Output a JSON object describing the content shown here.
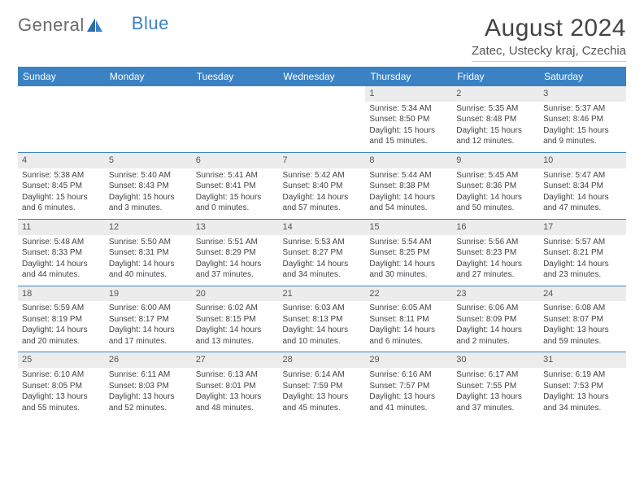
{
  "logo": {
    "part1": "General",
    "part2": "Blue"
  },
  "title": "August 2024",
  "location": "Zatec, Ustecky kraj, Czechia",
  "colors": {
    "header_bg": "#3b82c4",
    "header_fg": "#ffffff",
    "daynum_bg": "#ececec",
    "border": "#3b82c4",
    "text": "#444444"
  },
  "typography": {
    "title_fontsize": 30,
    "location_fontsize": 15,
    "dayheader_fontsize": 12,
    "cell_fontsize": 10
  },
  "day_headers": [
    "Sunday",
    "Monday",
    "Tuesday",
    "Wednesday",
    "Thursday",
    "Friday",
    "Saturday"
  ],
  "weeks": [
    [
      null,
      null,
      null,
      null,
      {
        "n": "1",
        "sunrise": "Sunrise: 5:34 AM",
        "sunset": "Sunset: 8:50 PM",
        "daylight": "Daylight: 15 hours and 15 minutes."
      },
      {
        "n": "2",
        "sunrise": "Sunrise: 5:35 AM",
        "sunset": "Sunset: 8:48 PM",
        "daylight": "Daylight: 15 hours and 12 minutes."
      },
      {
        "n": "3",
        "sunrise": "Sunrise: 5:37 AM",
        "sunset": "Sunset: 8:46 PM",
        "daylight": "Daylight: 15 hours and 9 minutes."
      }
    ],
    [
      {
        "n": "4",
        "sunrise": "Sunrise: 5:38 AM",
        "sunset": "Sunset: 8:45 PM",
        "daylight": "Daylight: 15 hours and 6 minutes."
      },
      {
        "n": "5",
        "sunrise": "Sunrise: 5:40 AM",
        "sunset": "Sunset: 8:43 PM",
        "daylight": "Daylight: 15 hours and 3 minutes."
      },
      {
        "n": "6",
        "sunrise": "Sunrise: 5:41 AM",
        "sunset": "Sunset: 8:41 PM",
        "daylight": "Daylight: 15 hours and 0 minutes."
      },
      {
        "n": "7",
        "sunrise": "Sunrise: 5:42 AM",
        "sunset": "Sunset: 8:40 PM",
        "daylight": "Daylight: 14 hours and 57 minutes."
      },
      {
        "n": "8",
        "sunrise": "Sunrise: 5:44 AM",
        "sunset": "Sunset: 8:38 PM",
        "daylight": "Daylight: 14 hours and 54 minutes."
      },
      {
        "n": "9",
        "sunrise": "Sunrise: 5:45 AM",
        "sunset": "Sunset: 8:36 PM",
        "daylight": "Daylight: 14 hours and 50 minutes."
      },
      {
        "n": "10",
        "sunrise": "Sunrise: 5:47 AM",
        "sunset": "Sunset: 8:34 PM",
        "daylight": "Daylight: 14 hours and 47 minutes."
      }
    ],
    [
      {
        "n": "11",
        "sunrise": "Sunrise: 5:48 AM",
        "sunset": "Sunset: 8:33 PM",
        "daylight": "Daylight: 14 hours and 44 minutes."
      },
      {
        "n": "12",
        "sunrise": "Sunrise: 5:50 AM",
        "sunset": "Sunset: 8:31 PM",
        "daylight": "Daylight: 14 hours and 40 minutes."
      },
      {
        "n": "13",
        "sunrise": "Sunrise: 5:51 AM",
        "sunset": "Sunset: 8:29 PM",
        "daylight": "Daylight: 14 hours and 37 minutes."
      },
      {
        "n": "14",
        "sunrise": "Sunrise: 5:53 AM",
        "sunset": "Sunset: 8:27 PM",
        "daylight": "Daylight: 14 hours and 34 minutes."
      },
      {
        "n": "15",
        "sunrise": "Sunrise: 5:54 AM",
        "sunset": "Sunset: 8:25 PM",
        "daylight": "Daylight: 14 hours and 30 minutes."
      },
      {
        "n": "16",
        "sunrise": "Sunrise: 5:56 AM",
        "sunset": "Sunset: 8:23 PM",
        "daylight": "Daylight: 14 hours and 27 minutes."
      },
      {
        "n": "17",
        "sunrise": "Sunrise: 5:57 AM",
        "sunset": "Sunset: 8:21 PM",
        "daylight": "Daylight: 14 hours and 23 minutes."
      }
    ],
    [
      {
        "n": "18",
        "sunrise": "Sunrise: 5:59 AM",
        "sunset": "Sunset: 8:19 PM",
        "daylight": "Daylight: 14 hours and 20 minutes."
      },
      {
        "n": "19",
        "sunrise": "Sunrise: 6:00 AM",
        "sunset": "Sunset: 8:17 PM",
        "daylight": "Daylight: 14 hours and 17 minutes."
      },
      {
        "n": "20",
        "sunrise": "Sunrise: 6:02 AM",
        "sunset": "Sunset: 8:15 PM",
        "daylight": "Daylight: 14 hours and 13 minutes."
      },
      {
        "n": "21",
        "sunrise": "Sunrise: 6:03 AM",
        "sunset": "Sunset: 8:13 PM",
        "daylight": "Daylight: 14 hours and 10 minutes."
      },
      {
        "n": "22",
        "sunrise": "Sunrise: 6:05 AM",
        "sunset": "Sunset: 8:11 PM",
        "daylight": "Daylight: 14 hours and 6 minutes."
      },
      {
        "n": "23",
        "sunrise": "Sunrise: 6:06 AM",
        "sunset": "Sunset: 8:09 PM",
        "daylight": "Daylight: 14 hours and 2 minutes."
      },
      {
        "n": "24",
        "sunrise": "Sunrise: 6:08 AM",
        "sunset": "Sunset: 8:07 PM",
        "daylight": "Daylight: 13 hours and 59 minutes."
      }
    ],
    [
      {
        "n": "25",
        "sunrise": "Sunrise: 6:10 AM",
        "sunset": "Sunset: 8:05 PM",
        "daylight": "Daylight: 13 hours and 55 minutes."
      },
      {
        "n": "26",
        "sunrise": "Sunrise: 6:11 AM",
        "sunset": "Sunset: 8:03 PM",
        "daylight": "Daylight: 13 hours and 52 minutes."
      },
      {
        "n": "27",
        "sunrise": "Sunrise: 6:13 AM",
        "sunset": "Sunset: 8:01 PM",
        "daylight": "Daylight: 13 hours and 48 minutes."
      },
      {
        "n": "28",
        "sunrise": "Sunrise: 6:14 AM",
        "sunset": "Sunset: 7:59 PM",
        "daylight": "Daylight: 13 hours and 45 minutes."
      },
      {
        "n": "29",
        "sunrise": "Sunrise: 6:16 AM",
        "sunset": "Sunset: 7:57 PM",
        "daylight": "Daylight: 13 hours and 41 minutes."
      },
      {
        "n": "30",
        "sunrise": "Sunrise: 6:17 AM",
        "sunset": "Sunset: 7:55 PM",
        "daylight": "Daylight: 13 hours and 37 minutes."
      },
      {
        "n": "31",
        "sunrise": "Sunrise: 6:19 AM",
        "sunset": "Sunset: 7:53 PM",
        "daylight": "Daylight: 13 hours and 34 minutes."
      }
    ]
  ]
}
